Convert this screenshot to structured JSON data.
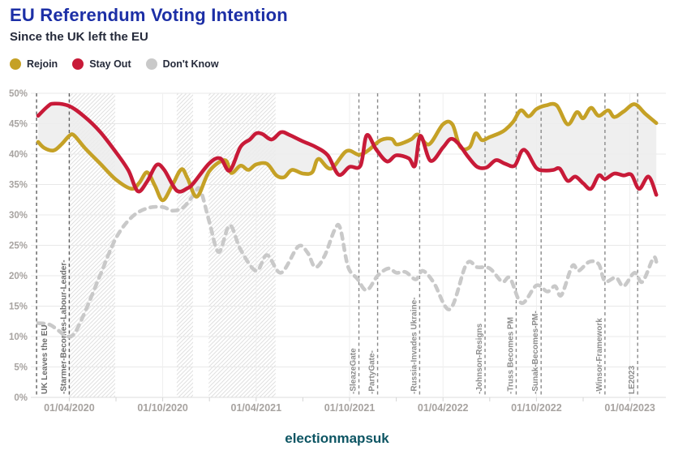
{
  "header": {
    "title": "EU Referendum Voting Intention",
    "subtitle": "Since the UK left the EU",
    "title_color": "#1c2fa6"
  },
  "legend": [
    {
      "label": "Rejoin",
      "color": "#c5a126"
    },
    {
      "label": "Stay Out",
      "color": "#c81a38"
    },
    {
      "label": "Don't Know",
      "color": "#c9c9c9"
    }
  ],
  "footer": {
    "brand": "electionmapsuk",
    "color": "#0d5563"
  },
  "colors": {
    "grid": "#e8e8e8",
    "axis_text": "#a7a3a0",
    "band_fill": "#ececec",
    "hatch": "#e0e0e0",
    "event_line": "#8a8a8a",
    "event_line_strong": "#616161",
    "event_text": "#8d8d8d",
    "event_text_strong": "#6d6d6d",
    "minor_tick": "#d5d5d5"
  },
  "chart_data": {
    "type": "line",
    "title": "EU Referendum Voting Intention",
    "subtitle": "Since the UK left the EU",
    "x_unit": "months since 01/02/2020",
    "grid": true,
    "legend_position": "top-left",
    "y_axis": {
      "min": 0,
      "max": 50,
      "step": 5,
      "suffix": "%"
    },
    "x_axis": {
      "major_ticks": [
        {
          "m": 2,
          "label": "01/04/2020"
        },
        {
          "m": 8,
          "label": "01/10/2020"
        },
        {
          "m": 14,
          "label": "01/04/2021"
        },
        {
          "m": 20,
          "label": "01/10/2021"
        },
        {
          "m": 26,
          "label": "01/04/2022"
        },
        {
          "m": 32,
          "label": "01/10/2022"
        },
        {
          "m": 38,
          "label": "01/04/2023"
        }
      ],
      "minor_tick_start": 2,
      "minor_tick_step": 3,
      "minor_tick_end": 38
    },
    "shaded_periods": [
      {
        "from_m": 1.98,
        "to_m": 4.95
      },
      {
        "from_m": 8.9,
        "to_m": 9.95
      },
      {
        "from_m": 10.95,
        "to_m": 15.25
      }
    ],
    "events": [
      {
        "label": "UK Leaves the EU",
        "m": -0.1,
        "side": "right",
        "strong": true
      },
      {
        "label": "-Starmer-Becomes-Labour-Leader-",
        "m": 2.0,
        "side": "left",
        "strong": true
      },
      {
        "label": "-SleazeGate",
        "m": 20.6,
        "side": "left",
        "strong": false
      },
      {
        "label": "-PartyGate-",
        "m": 21.8,
        "side": "left",
        "strong": false
      },
      {
        "label": "-Russia-Invades Ukraine-",
        "m": 24.5,
        "side": "left",
        "strong": false
      },
      {
        "label": "-Johnson-Resigns",
        "m": 28.7,
        "side": "left",
        "strong": false
      },
      {
        "label": "-Truss Becomes PM",
        "m": 30.7,
        "side": "left",
        "strong": false
      },
      {
        "label": "-Sunak-Becomes-PM-",
        "m": 32.3,
        "side": "left",
        "strong": false
      },
      {
        "label": "-Winsor-Framework",
        "m": 36.4,
        "side": "left",
        "strong": false
      },
      {
        "label": "LE2023",
        "m": 38.5,
        "side": "left",
        "strong": false
      }
    ],
    "band_between": [
      "Rejoin",
      "Stay Out"
    ],
    "series": [
      {
        "name": "Rejoin",
        "color": "#c5a126",
        "dashed": false,
        "points": [
          [
            0,
            42.0
          ],
          [
            0.4,
            41.0
          ],
          [
            1,
            40.6
          ],
          [
            1.5,
            41.6
          ],
          [
            2,
            43.0
          ],
          [
            2.3,
            43.1
          ],
          [
            3,
            41.0
          ],
          [
            4,
            38.4
          ],
          [
            5,
            35.8
          ],
          [
            6,
            34.3
          ],
          [
            6.5,
            35.3
          ],
          [
            7,
            37.0
          ],
          [
            7.5,
            34.8
          ],
          [
            8,
            32.4
          ],
          [
            8.6,
            34.8
          ],
          [
            9.2,
            37.5
          ],
          [
            9.6,
            36.0
          ],
          [
            10.2,
            33.0
          ],
          [
            11,
            37.2
          ],
          [
            12,
            39.0
          ],
          [
            12.4,
            36.9
          ],
          [
            13,
            38.1
          ],
          [
            13.5,
            37.4
          ],
          [
            14,
            38.3
          ],
          [
            14.7,
            38.4
          ],
          [
            15.3,
            36.5
          ],
          [
            15.8,
            36.2
          ],
          [
            16.3,
            37.4
          ],
          [
            17,
            36.8
          ],
          [
            17.6,
            37.0
          ],
          [
            18,
            39.2
          ],
          [
            18.8,
            37.6
          ],
          [
            19.8,
            40.5
          ],
          [
            20.6,
            39.9
          ],
          [
            21.2,
            40.6
          ],
          [
            22,
            42.3
          ],
          [
            22.7,
            42.5
          ],
          [
            23,
            41.6
          ],
          [
            23.5,
            41.9
          ],
          [
            24,
            42.5
          ],
          [
            24.4,
            43.2
          ],
          [
            25.1,
            41.6
          ],
          [
            26,
            44.9
          ],
          [
            26.6,
            44.9
          ],
          [
            27.1,
            41.2
          ],
          [
            27.7,
            41.1
          ],
          [
            28.1,
            43.4
          ],
          [
            28.5,
            42.3
          ],
          [
            29,
            42.8
          ],
          [
            29.6,
            43.4
          ],
          [
            30,
            44.0
          ],
          [
            30.5,
            45.3
          ],
          [
            31,
            47.2
          ],
          [
            31.5,
            46.2
          ],
          [
            32,
            47.4
          ],
          [
            32.6,
            48.0
          ],
          [
            33.3,
            48.0
          ],
          [
            34,
            44.9
          ],
          [
            34.6,
            46.9
          ],
          [
            35,
            45.9
          ],
          [
            35.5,
            47.6
          ],
          [
            36,
            46.3
          ],
          [
            36.6,
            47.2
          ],
          [
            37,
            46.1
          ],
          [
            37.6,
            47.0
          ],
          [
            38.3,
            48.2
          ],
          [
            39,
            46.6
          ],
          [
            39.7,
            45.1
          ]
        ]
      },
      {
        "name": "Stay Out",
        "color": "#c81a38",
        "dashed": false,
        "points": [
          [
            0,
            46.3
          ],
          [
            0.6,
            47.8
          ],
          [
            1,
            48.3
          ],
          [
            2,
            47.9
          ],
          [
            3,
            46.1
          ],
          [
            4,
            43.6
          ],
          [
            5,
            40.3
          ],
          [
            5.8,
            37.3
          ],
          [
            6.4,
            33.9
          ],
          [
            7,
            35.5
          ],
          [
            7.6,
            38.2
          ],
          [
            8.1,
            37.4
          ],
          [
            8.9,
            34.0
          ],
          [
            9.6,
            34.4
          ],
          [
            10,
            35.3
          ],
          [
            11,
            38.5
          ],
          [
            11.7,
            39.3
          ],
          [
            12.3,
            37.3
          ],
          [
            13,
            41.2
          ],
          [
            13.6,
            42.4
          ],
          [
            14,
            43.4
          ],
          [
            14.4,
            43.3
          ],
          [
            15,
            42.4
          ],
          [
            15.6,
            43.6
          ],
          [
            16.1,
            43.2
          ],
          [
            17,
            42.1
          ],
          [
            17.8,
            41.2
          ],
          [
            18.6,
            39.8
          ],
          [
            19.3,
            36.6
          ],
          [
            20,
            37.9
          ],
          [
            20.7,
            38.1
          ],
          [
            21.1,
            43.1
          ],
          [
            21.7,
            40.8
          ],
          [
            22.4,
            38.8
          ],
          [
            23,
            39.8
          ],
          [
            23.8,
            39.3
          ],
          [
            24.2,
            38.1
          ],
          [
            24.55,
            43.0
          ],
          [
            25.2,
            38.9
          ],
          [
            26,
            41.1
          ],
          [
            26.5,
            42.5
          ],
          [
            27,
            41.7
          ],
          [
            27.6,
            39.6
          ],
          [
            28.2,
            37.9
          ],
          [
            28.8,
            37.8
          ],
          [
            29.4,
            39.0
          ],
          [
            30,
            38.4
          ],
          [
            30.6,
            38.1
          ],
          [
            31.05,
            40.5
          ],
          [
            31.4,
            40.3
          ],
          [
            32,
            37.7
          ],
          [
            32.6,
            37.3
          ],
          [
            33.1,
            37.4
          ],
          [
            33.5,
            37.6
          ],
          [
            34,
            35.6
          ],
          [
            34.5,
            36.3
          ],
          [
            35,
            35.2
          ],
          [
            35.5,
            34.3
          ],
          [
            36,
            36.5
          ],
          [
            36.4,
            35.9
          ],
          [
            37,
            36.8
          ],
          [
            37.6,
            36.5
          ],
          [
            38.1,
            36.6
          ],
          [
            38.6,
            34.3
          ],
          [
            39.2,
            36.3
          ],
          [
            39.7,
            33.3
          ]
        ]
      },
      {
        "name": "Don't Know",
        "color": "#c9c9c9",
        "dashed": true,
        "points": [
          [
            0,
            12.2
          ],
          [
            0.7,
            12.0
          ],
          [
            1.3,
            11.0
          ],
          [
            1.8,
            10.1
          ],
          [
            2.3,
            10.4
          ],
          [
            3,
            14.0
          ],
          [
            4,
            20.2
          ],
          [
            5,
            26.2
          ],
          [
            6,
            29.6
          ],
          [
            7,
            31.1
          ],
          [
            8,
            31.3
          ],
          [
            8.6,
            30.7
          ],
          [
            9.3,
            31.2
          ],
          [
            10,
            33.3
          ],
          [
            10.4,
            34.2
          ],
          [
            11,
            28.8
          ],
          [
            11.6,
            23.9
          ],
          [
            12.3,
            28.3
          ],
          [
            13,
            24.3
          ],
          [
            14,
            20.8
          ],
          [
            14.7,
            23.4
          ],
          [
            15.6,
            20.5
          ],
          [
            16.7,
            24.8
          ],
          [
            17.3,
            23.8
          ],
          [
            17.8,
            21.4
          ],
          [
            18.4,
            23.3
          ],
          [
            19.05,
            27.6
          ],
          [
            19.4,
            27.8
          ],
          [
            19.9,
            21.5
          ],
          [
            20.5,
            19.5
          ],
          [
            21.1,
            17.6
          ],
          [
            21.8,
            20.0
          ],
          [
            22.5,
            21.2
          ],
          [
            23,
            20.5
          ],
          [
            23.6,
            20.6
          ],
          [
            24.25,
            19.4
          ],
          [
            24.7,
            20.8
          ],
          [
            25.4,
            18.9
          ],
          [
            26.45,
            14.5
          ],
          [
            27.5,
            21.9
          ],
          [
            28.2,
            21.4
          ],
          [
            29,
            21.2
          ],
          [
            29.8,
            19.0
          ],
          [
            30.3,
            19.6
          ],
          [
            31.05,
            15.5
          ],
          [
            32,
            18.4
          ],
          [
            32.7,
            17.4
          ],
          [
            33.2,
            18.3
          ],
          [
            33.6,
            16.8
          ],
          [
            34.3,
            21.6
          ],
          [
            34.7,
            20.8
          ],
          [
            35.4,
            22.3
          ],
          [
            36,
            21.9
          ],
          [
            36.4,
            19.1
          ],
          [
            37.1,
            19.7
          ],
          [
            37.6,
            18.3
          ],
          [
            38.3,
            20.5
          ],
          [
            38.8,
            19.0
          ],
          [
            39.5,
            22.9
          ],
          [
            39.7,
            22.3
          ]
        ]
      }
    ]
  }
}
